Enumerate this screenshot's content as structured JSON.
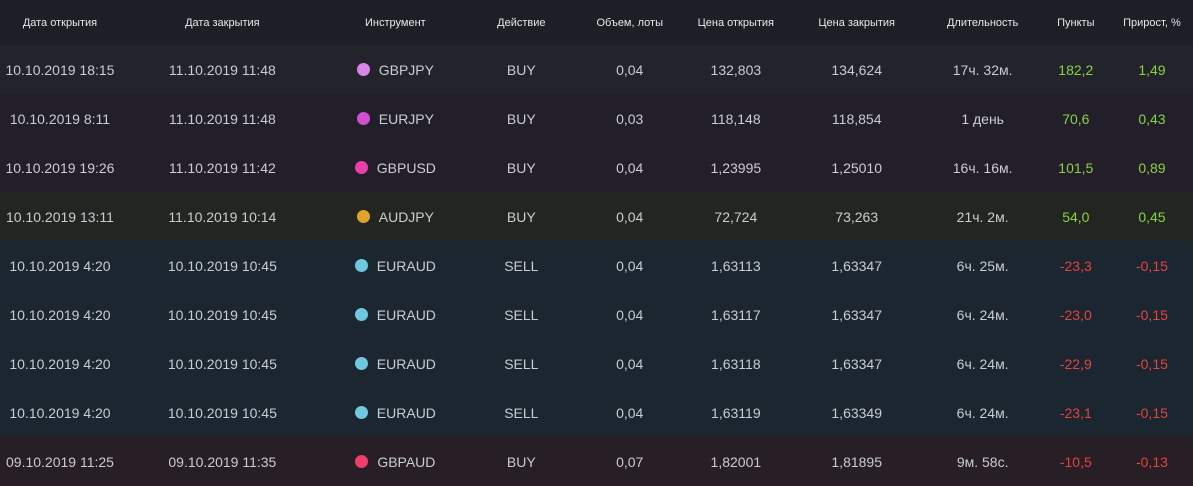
{
  "columns": [
    "Дата открытия",
    "Дата закрытия",
    "Инструмент",
    "Действие",
    "Объем, лоты",
    "Цена открытия",
    "Цена закрытия",
    "Длительность",
    "Пункты",
    "Прирост, %"
  ],
  "rows": [
    {
      "open_date": "10.10.2019 18:15",
      "close_date": "11.10.2019 11:48",
      "instrument": "GBPJPY",
      "dot_color": "#d884e8",
      "action": "BUY",
      "volume": "0,04",
      "open_price": "132,803",
      "close_price": "134,624",
      "duration": "17ч. 32м.",
      "points": "182,2",
      "gain": "1,49",
      "sign": "pos",
      "bg": "#23232b"
    },
    {
      "open_date": "10.10.2019 8:11",
      "close_date": "11.10.2019 11:48",
      "instrument": "EURJPY",
      "dot_color": "#d14dd1",
      "action": "BUY",
      "volume": "0,03",
      "open_price": "118,148",
      "close_price": "118,854",
      "duration": "1 день",
      "points": "70,6",
      "gain": "0,43",
      "sign": "pos",
      "bg": "#221f2b"
    },
    {
      "open_date": "10.10.2019 19:26",
      "close_date": "11.10.2019 11:42",
      "instrument": "GBPUSD",
      "dot_color": "#e840a6",
      "action": "BUY",
      "volume": "0,04",
      "open_price": "1,23995",
      "close_price": "1,25010",
      "duration": "16ч. 16м.",
      "points": "101,5",
      "gain": "0,89",
      "sign": "pos",
      "bg": "#241e2a"
    },
    {
      "open_date": "10.10.2019 13:11",
      "close_date": "11.10.2019 10:14",
      "instrument": "AUDJPY",
      "dot_color": "#e0a32a",
      "action": "BUY",
      "volume": "0,04",
      "open_price": "72,724",
      "close_price": "73,263",
      "duration": "21ч. 2м.",
      "points": "54,0",
      "gain": "0,45",
      "sign": "pos",
      "bg": "#232521"
    },
    {
      "open_date": "10.10.2019 4:20",
      "close_date": "10.10.2019 10:45",
      "instrument": "EURAUD",
      "dot_color": "#6ec9de",
      "action": "SELL",
      "volume": "0,04",
      "open_price": "1,63113",
      "close_price": "1,63347",
      "duration": "6ч. 25м.",
      "points": "-23,3",
      "gain": "-0,15",
      "sign": "neg",
      "bg": "#1c2630"
    },
    {
      "open_date": "10.10.2019 4:20",
      "close_date": "10.10.2019 10:45",
      "instrument": "EURAUD",
      "dot_color": "#6ec9de",
      "action": "SELL",
      "volume": "0,04",
      "open_price": "1,63117",
      "close_price": "1,63347",
      "duration": "6ч. 24м.",
      "points": "-23,0",
      "gain": "-0,15",
      "sign": "neg",
      "bg": "#1c2630"
    },
    {
      "open_date": "10.10.2019 4:20",
      "close_date": "10.10.2019 10:45",
      "instrument": "EURAUD",
      "dot_color": "#6ec9de",
      "action": "SELL",
      "volume": "0,04",
      "open_price": "1,63118",
      "close_price": "1,63347",
      "duration": "6ч. 24м.",
      "points": "-22,9",
      "gain": "-0,15",
      "sign": "neg",
      "bg": "#1c2630"
    },
    {
      "open_date": "10.10.2019 4:20",
      "close_date": "10.10.2019 10:45",
      "instrument": "EURAUD",
      "dot_color": "#6ec9de",
      "action": "SELL",
      "volume": "0,04",
      "open_price": "1,63119",
      "close_price": "1,63349",
      "duration": "6ч. 24м.",
      "points": "-23,1",
      "gain": "-0,15",
      "sign": "neg",
      "bg": "#1c2630"
    },
    {
      "open_date": "09.10.2019 11:25",
      "close_date": "09.10.2019 11:35",
      "instrument": "GBPAUD",
      "dot_color": "#f03d6c",
      "action": "BUY",
      "volume": "0,07",
      "open_price": "1,82001",
      "close_price": "1,81895",
      "duration": "9м. 58с.",
      "points": "-10,5",
      "gain": "-0,13",
      "sign": "neg",
      "bg": "#271e26"
    }
  ],
  "colors": {
    "positive": "#86d341",
    "negative": "#e5433f",
    "header_bg": "#1c1f25"
  }
}
